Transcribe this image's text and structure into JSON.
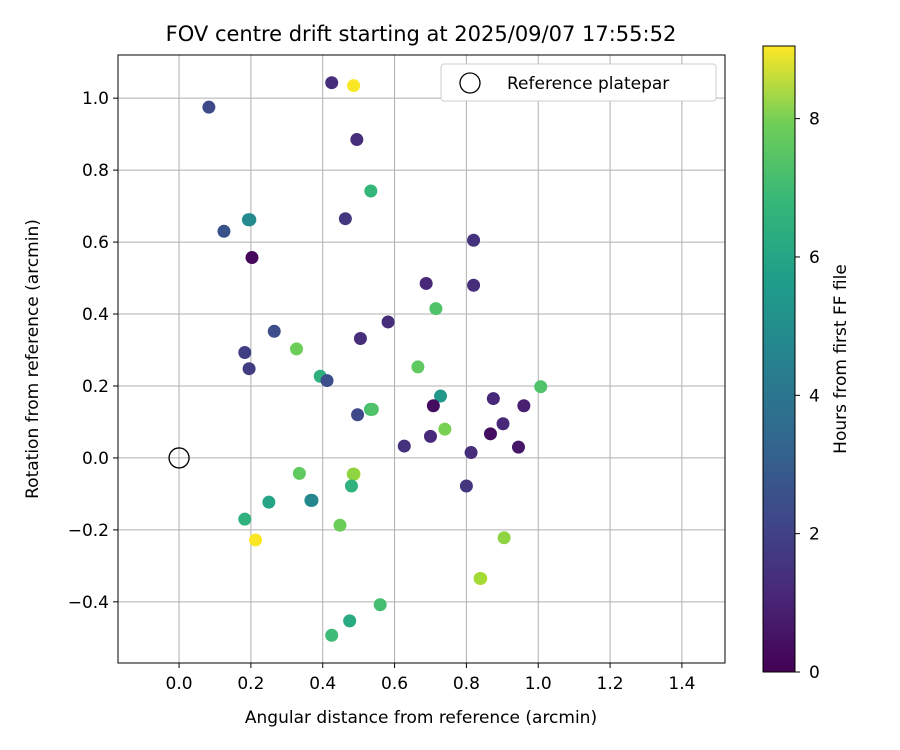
{
  "chart_data": {
    "type": "scatter",
    "title": "FOV centre drift starting at 2025/09/07 17:55:52",
    "xlabel": "Angular distance from reference (arcmin)",
    "ylabel": "Rotation from reference (arcmin)",
    "xlim": [
      -0.17,
      1.52
    ],
    "ylim": [
      -0.57,
      1.12
    ],
    "xticks": [
      0.0,
      0.2,
      0.4,
      0.6,
      0.8,
      1.0,
      1.2,
      1.4
    ],
    "xtick_labels": [
      "0.0",
      "0.2",
      "0.4",
      "0.6",
      "0.8",
      "1.0",
      "1.2",
      "1.4"
    ],
    "yticks": [
      -0.4,
      -0.2,
      0.0,
      0.2,
      0.4,
      0.6,
      0.8,
      1.0
    ],
    "ytick_labels": [
      "−0.4",
      "−0.2",
      "0.0",
      "0.2",
      "0.4",
      "0.6",
      "0.8",
      "1.0"
    ],
    "grid": true,
    "legend": {
      "position": "top-right",
      "entries": [
        "Reference platepar"
      ]
    },
    "reference_point": {
      "x": 0.0,
      "y": 0.0,
      "label": "Reference platepar"
    },
    "colorbar": {
      "label": "Hours from first FF file",
      "min": 0,
      "max": 9.05,
      "ticks": [
        0,
        2,
        4,
        6,
        8
      ],
      "tick_labels": [
        "0",
        "2",
        "4",
        "6",
        "8"
      ],
      "colormap": "viridis"
    },
    "points": [
      {
        "x": 0.083,
        "y": 0.975,
        "hours": 2.0
      },
      {
        "x": 0.425,
        "y": 1.043,
        "hours": 1.2
      },
      {
        "x": 0.486,
        "y": 1.035,
        "hours": 9.0
      },
      {
        "x": 0.495,
        "y": 0.885,
        "hours": 1.2
      },
      {
        "x": 0.534,
        "y": 0.742,
        "hours": 6.0
      },
      {
        "x": 0.193,
        "y": 0.662,
        "hours": 4.5
      },
      {
        "x": 0.197,
        "y": 0.662,
        "hours": 4.3
      },
      {
        "x": 0.125,
        "y": 0.63,
        "hours": 2.3
      },
      {
        "x": 0.463,
        "y": 0.665,
        "hours": 1.5
      },
      {
        "x": 0.82,
        "y": 0.605,
        "hours": 1.3
      },
      {
        "x": 0.203,
        "y": 0.557,
        "hours": 0.2
      },
      {
        "x": 0.688,
        "y": 0.485,
        "hours": 1.0
      },
      {
        "x": 0.82,
        "y": 0.48,
        "hours": 1.2
      },
      {
        "x": 0.715,
        "y": 0.415,
        "hours": 6.5
      },
      {
        "x": 0.582,
        "y": 0.378,
        "hours": 1.2
      },
      {
        "x": 0.265,
        "y": 0.352,
        "hours": 2.2
      },
      {
        "x": 0.505,
        "y": 0.332,
        "hours": 1.2
      },
      {
        "x": 0.183,
        "y": 0.293,
        "hours": 1.7
      },
      {
        "x": 0.327,
        "y": 0.303,
        "hours": 7.0
      },
      {
        "x": 0.665,
        "y": 0.253,
        "hours": 6.8
      },
      {
        "x": 0.195,
        "y": 0.248,
        "hours": 1.6
      },
      {
        "x": 0.393,
        "y": 0.227,
        "hours": 5.7
      },
      {
        "x": 0.412,
        "y": 0.215,
        "hours": 2.2
      },
      {
        "x": 1.007,
        "y": 0.198,
        "hours": 6.5
      },
      {
        "x": 0.728,
        "y": 0.172,
        "hours": 4.8
      },
      {
        "x": 0.875,
        "y": 0.165,
        "hours": 1.0
      },
      {
        "x": 0.96,
        "y": 0.145,
        "hours": 0.8
      },
      {
        "x": 0.708,
        "y": 0.145,
        "hours": 0.3
      },
      {
        "x": 0.533,
        "y": 0.135,
        "hours": 6.2
      },
      {
        "x": 0.538,
        "y": 0.135,
        "hours": 6.5
      },
      {
        "x": 0.497,
        "y": 0.12,
        "hours": 2.0
      },
      {
        "x": 0.902,
        "y": 0.095,
        "hours": 1.0
      },
      {
        "x": 0.74,
        "y": 0.08,
        "hours": 7.2
      },
      {
        "x": 0.867,
        "y": 0.067,
        "hours": 0.3
      },
      {
        "x": 0.7,
        "y": 0.06,
        "hours": 1.1
      },
      {
        "x": 0.627,
        "y": 0.033,
        "hours": 1.3
      },
      {
        "x": 0.945,
        "y": 0.03,
        "hours": 0.6
      },
      {
        "x": 0.813,
        "y": 0.015,
        "hours": 1.2
      },
      {
        "x": 0.8,
        "y": -0.078,
        "hours": 1.4
      },
      {
        "x": 0.335,
        "y": -0.043,
        "hours": 6.8
      },
      {
        "x": 0.487,
        "y": -0.045,
        "hours": 8.0
      },
      {
        "x": 0.485,
        "y": -0.045,
        "hours": 7.5
      },
      {
        "x": 0.48,
        "y": -0.078,
        "hours": 5.8
      },
      {
        "x": 0.367,
        "y": -0.118,
        "hours": 4.5
      },
      {
        "x": 0.37,
        "y": -0.118,
        "hours": 4.2
      },
      {
        "x": 0.25,
        "y": -0.123,
        "hours": 5.3
      },
      {
        "x": 0.183,
        "y": -0.17,
        "hours": 5.8
      },
      {
        "x": 0.448,
        "y": -0.187,
        "hours": 7.0
      },
      {
        "x": 0.213,
        "y": -0.228,
        "hours": 9.0
      },
      {
        "x": 0.905,
        "y": -0.222,
        "hours": 7.5
      },
      {
        "x": 0.84,
        "y": -0.335,
        "hours": 8.2
      },
      {
        "x": 0.838,
        "y": -0.335,
        "hours": 7.8
      },
      {
        "x": 0.56,
        "y": -0.408,
        "hours": 6.3
      },
      {
        "x": 0.475,
        "y": -0.453,
        "hours": 5.5
      },
      {
        "x": 0.425,
        "y": -0.493,
        "hours": 6.2
      }
    ]
  }
}
